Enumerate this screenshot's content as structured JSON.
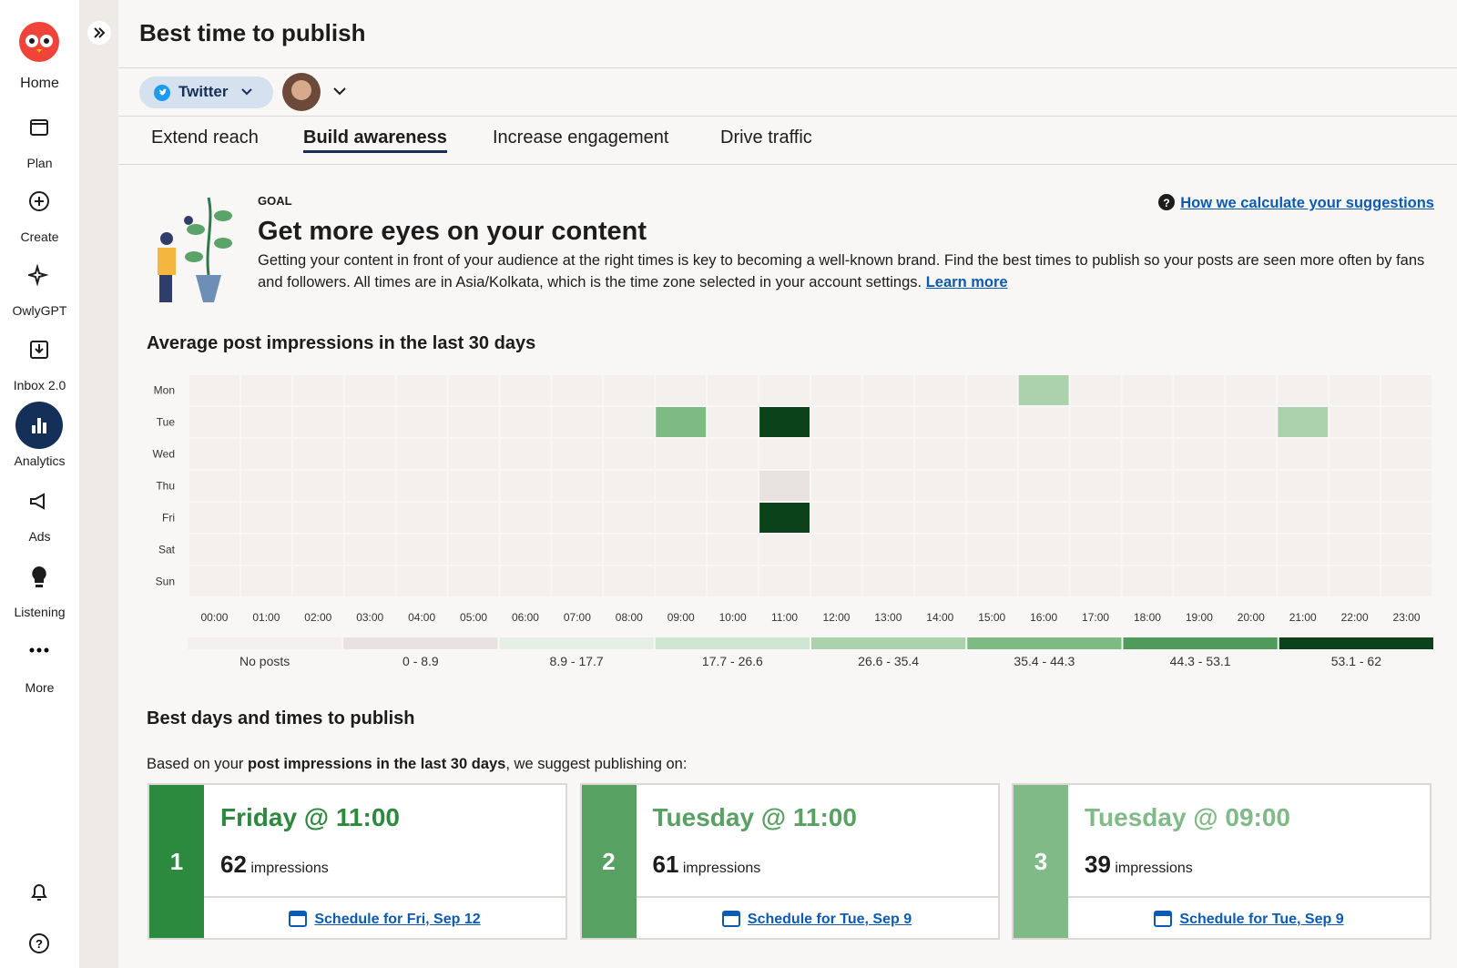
{
  "sidebar": {
    "items": [
      "Home",
      "Plan",
      "Create",
      "OwlyGPT",
      "Inbox 2.0",
      "Analytics",
      "Ads",
      "Listening",
      "More"
    ]
  },
  "header": {
    "title": "Best time to publish"
  },
  "network": "Twitter",
  "tabs": [
    {
      "label": "Extend reach",
      "active": false
    },
    {
      "label": "Build awareness",
      "active": true
    },
    {
      "label": "Increase engagement",
      "active": false
    },
    {
      "label": "Drive traffic",
      "active": false
    }
  ],
  "goal": {
    "eyebrow": "GOAL",
    "title": "Get more eyes on your content",
    "text": "Getting your content in front of your audience at the right times is key to becoming a well-known brand. Find the best times to publish so your posts are seen more often by fans and followers. All times are in Asia/Kolkata, which is the time zone selected in your account settings.",
    "link": "Learn more",
    "help_link": "How we calculate your suggestions"
  },
  "heatmap": {
    "type": "heatmap",
    "title": "Average post impressions in the last 30 days",
    "rows": [
      "Mon",
      "Tue",
      "Wed",
      "Thu",
      "Fri",
      "Sat",
      "Sun"
    ],
    "columns": [
      "00:00",
      "01:00",
      "02:00",
      "03:00",
      "04:00",
      "05:00",
      "06:00",
      "07:00",
      "08:00",
      "09:00",
      "10:00",
      "11:00",
      "12:00",
      "13:00",
      "14:00",
      "15:00",
      "16:00",
      "17:00",
      "18:00",
      "19:00",
      "20:00",
      "21:00",
      "22:00",
      "23:00"
    ],
    "values": [
      [
        null,
        null,
        null,
        null,
        null,
        null,
        null,
        null,
        null,
        null,
        null,
        null,
        null,
        null,
        null,
        null,
        31,
        null,
        null,
        null,
        null,
        null,
        null,
        null
      ],
      [
        null,
        null,
        null,
        null,
        null,
        null,
        null,
        null,
        null,
        39,
        null,
        61,
        null,
        null,
        null,
        null,
        null,
        null,
        null,
        null,
        null,
        31,
        null,
        null
      ],
      [
        null,
        null,
        null,
        null,
        null,
        null,
        null,
        null,
        null,
        null,
        null,
        null,
        null,
        null,
        null,
        null,
        null,
        null,
        null,
        null,
        null,
        null,
        null,
        null
      ],
      [
        null,
        null,
        null,
        null,
        null,
        null,
        null,
        null,
        null,
        null,
        null,
        4,
        null,
        null,
        null,
        null,
        null,
        null,
        null,
        null,
        null,
        null,
        null,
        null
      ],
      [
        null,
        null,
        null,
        null,
        null,
        null,
        null,
        null,
        null,
        null,
        null,
        62,
        null,
        null,
        null,
        null,
        null,
        null,
        null,
        null,
        null,
        null,
        null,
        null
      ],
      [
        null,
        null,
        null,
        null,
        null,
        null,
        null,
        null,
        null,
        null,
        null,
        null,
        null,
        null,
        null,
        null,
        null,
        null,
        null,
        null,
        null,
        null,
        null,
        null
      ],
      [
        null,
        null,
        null,
        null,
        null,
        null,
        null,
        null,
        null,
        null,
        null,
        null,
        null,
        null,
        null,
        null,
        null,
        null,
        null,
        null,
        null,
        null,
        null,
        null
      ]
    ],
    "legend": [
      {
        "label": "No posts",
        "color": "#f3f0ee"
      },
      {
        "label": "0 - 8.9",
        "min": 0,
        "max": 8.9,
        "color": "#e8e3e0"
      },
      {
        "label": "8.9 - 17.7",
        "min": 8.9,
        "max": 17.7,
        "color": "#e5efe5"
      },
      {
        "label": "17.7 - 26.6",
        "min": 17.7,
        "max": 26.6,
        "color": "#d1e6d2"
      },
      {
        "label": "26.6 - 35.4",
        "min": 26.6,
        "max": 35.4,
        "color": "#abd2ad"
      },
      {
        "label": "35.4 - 44.3",
        "min": 35.4,
        "max": 44.3,
        "color": "#7dba84"
      },
      {
        "label": "44.3 - 53.1",
        "min": 44.3,
        "max": 53.1,
        "color": "#509b5b"
      },
      {
        "label": "53.1 - 62",
        "min": 53.1,
        "max": 62,
        "color": "#0b4219"
      }
    ]
  },
  "best": {
    "title": "Best days and times to publish",
    "intro": "Based on your",
    "intro_bold": "post impressions in the last 30 days",
    "intro_end": ", we suggest publishing on:",
    "cards": [
      {
        "rank": 1,
        "title": "Friday @ 11:00",
        "impressions": 62,
        "unit": "impressions",
        "link": "Schedule for Fri, Sep 12",
        "color": "#2b8a3e"
      },
      {
        "rank": 2,
        "title": "Tuesday @ 11:00",
        "impressions": 61,
        "unit": "impressions",
        "link": "Schedule for Tue, Sep 9",
        "color": "#57a262"
      },
      {
        "rank": 3,
        "title": "Tuesday @ 09:00",
        "impressions": 39,
        "unit": "impressions",
        "link": "Schedule for Tue, Sep 9",
        "color": "#7fba87"
      }
    ]
  }
}
